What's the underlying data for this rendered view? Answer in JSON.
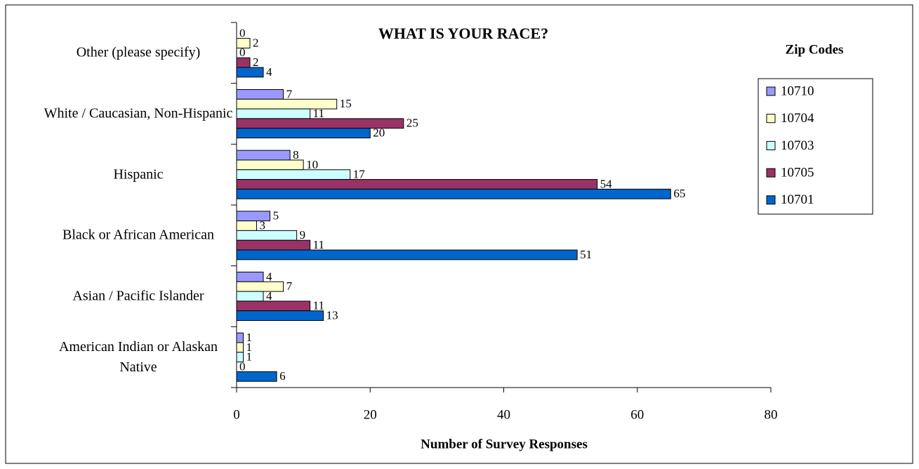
{
  "chart_data": {
    "type": "bar",
    "orientation": "horizontal",
    "title": "WHAT IS YOUR RACE?",
    "x_label": "Number of Survey Responses",
    "legend_title": "Zip Codes",
    "categories": [
      "Other (please specify)",
      "White / Caucasian, Non-Hispanic",
      "Hispanic",
      "Black or African American",
      "Asian / Pacific Islander",
      "American Indian or Alaskan Native"
    ],
    "series": [
      {
        "name": "10710",
        "color": "#9999ff",
        "values": [
          0,
          7,
          8,
          5,
          4,
          1
        ]
      },
      {
        "name": "10704",
        "color": "#ffffcc",
        "values": [
          2,
          15,
          10,
          3,
          7,
          1
        ]
      },
      {
        "name": "10703",
        "color": "#ccffff",
        "values": [
          0,
          11,
          17,
          9,
          4,
          1
        ]
      },
      {
        "name": "10705",
        "color": "#993366",
        "values": [
          2,
          25,
          54,
          11,
          11,
          0
        ]
      },
      {
        "name": "10701",
        "color": "#0066cc",
        "values": [
          4,
          20,
          65,
          51,
          13,
          6
        ]
      }
    ],
    "xlim": [
      0,
      80
    ],
    "xticks": [
      0,
      20,
      40,
      60,
      80
    ],
    "grid": false,
    "legend": "right"
  }
}
